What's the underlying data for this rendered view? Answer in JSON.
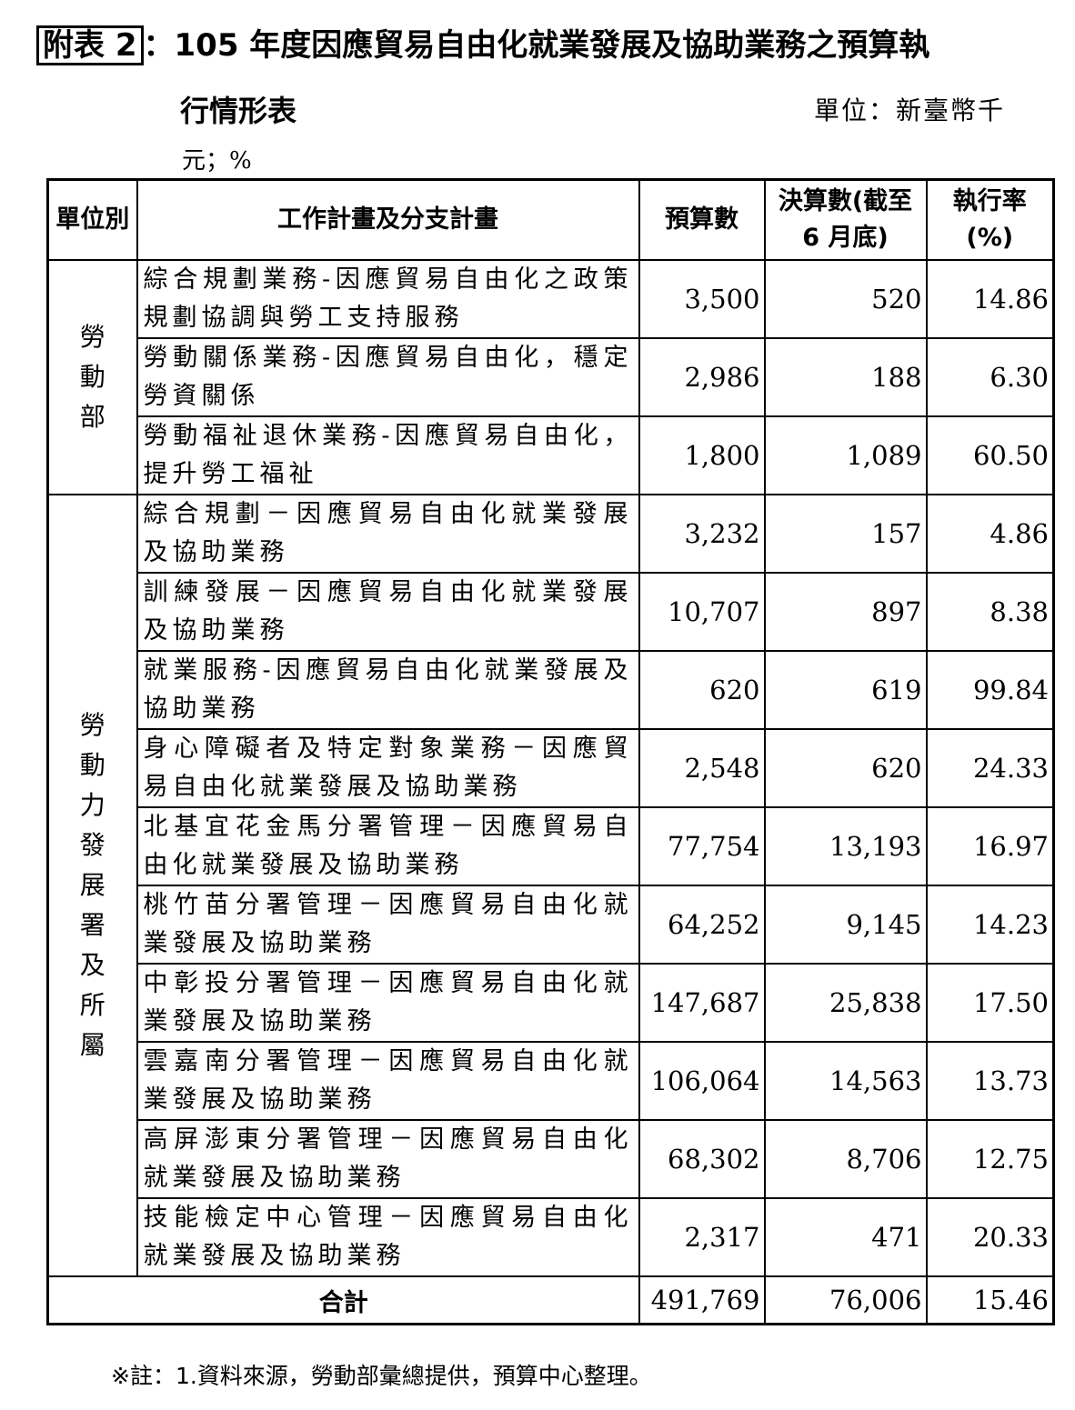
{
  "title": {
    "tag": "附表 2",
    "line1": "：105 年度因應貿易自由化就業發展及協助業務之預算執",
    "line2": "行情形表",
    "unit_line1": "單位：新臺幣千",
    "unit_line2": "元；%"
  },
  "headers": [
    "單位別",
    "工作計畫及分支計畫",
    "預算數",
    "決算數(截至 6 月底)",
    "執行率(%)"
  ],
  "groups": [
    {
      "unit": "勞動部",
      "rows": [
        {
          "plan": "綜合規劃業務-因應貿易自由化之政策規劃協調與勞工支持服務",
          "budget": "3,500",
          "actual": "520",
          "rate": "14.86"
        },
        {
          "plan": "勞動關係業務-因應貿易自由化，穩定勞資關係",
          "budget": "2,986",
          "actual": "188",
          "rate": "6.30"
        },
        {
          "plan": "勞動福祉退休業務-因應貿易自由化，提升勞工福祉",
          "budget": "1,800",
          "actual": "1,089",
          "rate": "60.50"
        }
      ]
    },
    {
      "unit": "勞動力發展署及所屬",
      "rows": [
        {
          "plan": "綜合規劃－因應貿易自由化就業發展及協助業務",
          "budget": "3,232",
          "actual": "157",
          "rate": "4.86"
        },
        {
          "plan": "訓練發展－因應貿易自由化就業發展及協助業務",
          "budget": "10,707",
          "actual": "897",
          "rate": "8.38"
        },
        {
          "plan": "就業服務-因應貿易自由化就業發展及協助業務",
          "budget": "620",
          "actual": "619",
          "rate": "99.84"
        },
        {
          "plan": "身心障礙者及特定對象業務－因應貿易自由化就業發展及協助業務",
          "budget": "2,548",
          "actual": "620",
          "rate": "24.33"
        },
        {
          "plan": "北基宜花金馬分署管理－因應貿易自由化就業發展及協助業務",
          "budget": "77,754",
          "actual": "13,193",
          "rate": "16.97"
        },
        {
          "plan": "桃竹苗分署管理－因應貿易自由化就業發展及協助業務",
          "budget": "64,252",
          "actual": "9,145",
          "rate": "14.23"
        },
        {
          "plan": "中彰投分署管理－因應貿易自由化就業發展及協助業務",
          "budget": "147,687",
          "actual": "25,838",
          "rate": "17.50"
        },
        {
          "plan": "雲嘉南分署管理－因應貿易自由化就業發展及協助業務",
          "budget": "106,064",
          "actual": "14,563",
          "rate": "13.73"
        },
        {
          "plan": "高屏澎東分署管理－因應貿易自由化就業發展及協助業務",
          "budget": "68,302",
          "actual": "8,706",
          "rate": "12.75"
        },
        {
          "plan": "技能檢定中心管理－因應貿易自由化就業發展及協助業務",
          "budget": "2,317",
          "actual": "471",
          "rate": "20.33"
        }
      ]
    }
  ],
  "total": {
    "label": "合計",
    "budget": "491,769",
    "actual": "76,006",
    "rate": "15.46"
  },
  "note": "※註：1.資料來源，勞動部彙總提供，預算中心整理。"
}
